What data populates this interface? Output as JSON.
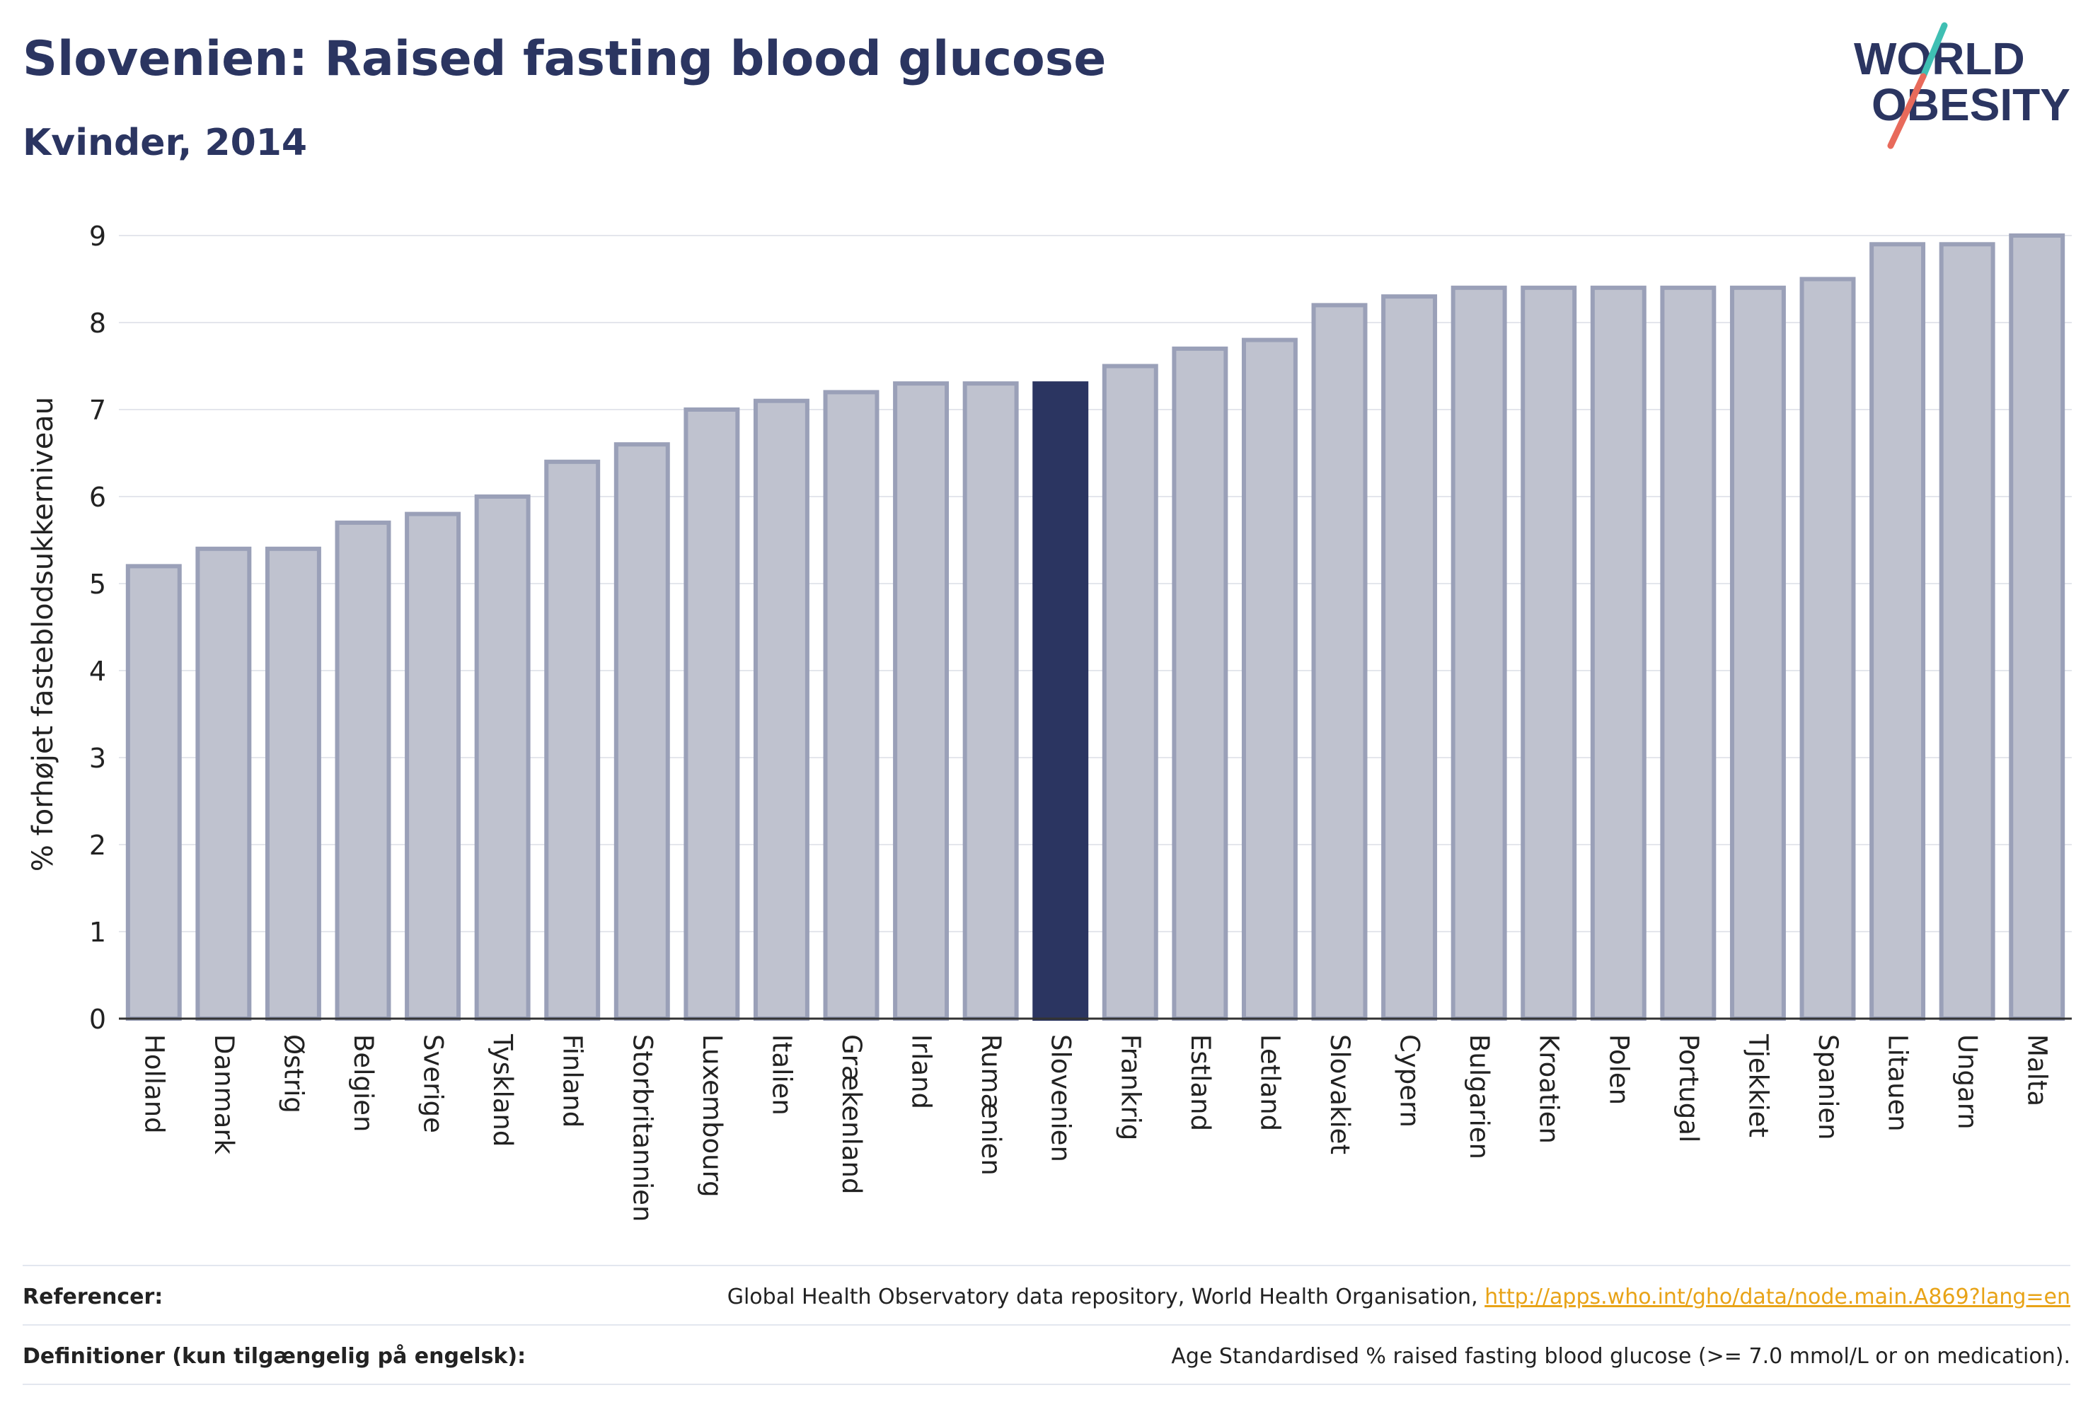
{
  "header": {
    "title": "Slovenien: Raised fasting blood glucose",
    "subtitle": "Kvinder, 2014"
  },
  "logo": {
    "line1": "WORLD",
    "line2": "OBESITY"
  },
  "colors": {
    "bar": "#bfc2cf",
    "bar_stroke": "#9aa0b8",
    "highlight": "#2b3561",
    "text": "#2b3561",
    "link": "#e8a317"
  },
  "chart_data": {
    "type": "bar",
    "ylabel": "% forhøjet fasteblodsukkerniveau",
    "ylim": [
      0,
      9
    ],
    "yticks": [
      0,
      1,
      2,
      3,
      4,
      5,
      6,
      7,
      8,
      9
    ],
    "grid": true,
    "highlight": "Slovenien",
    "categories": [
      "Holland",
      "Danmark",
      "Østrig",
      "Belgien",
      "Sverige",
      "Tyskland",
      "Finland",
      "Storbritannien",
      "Luxembourg",
      "Italien",
      "Grækenland",
      "Irland",
      "Rumænien",
      "Slovenien",
      "Frankrig",
      "Estland",
      "Letland",
      "Slovakiet",
      "Cypern",
      "Bulgarien",
      "Kroatien",
      "Polen",
      "Portugal",
      "Tjekkiet",
      "Spanien",
      "Litauen",
      "Ungarn",
      "Malta"
    ],
    "values": [
      5.2,
      5.4,
      5.4,
      5.7,
      5.8,
      6.0,
      6.4,
      6.6,
      7.0,
      7.1,
      7.2,
      7.3,
      7.3,
      7.3,
      7.5,
      7.7,
      7.8,
      8.2,
      8.3,
      8.4,
      8.4,
      8.4,
      8.4,
      8.4,
      8.5,
      8.9,
      8.9,
      9.0
    ]
  },
  "footer": {
    "references_label": "Referencer:",
    "references_text": "Global Health Observatory data repository, World Health Organisation, ",
    "references_link": "http://apps.who.int/gho/data/node.main.A869?lang=en",
    "definitions_label": "Definitioner (kun tilgængelig på engelsk):",
    "definitions_text": "Age Standardised % raised fasting blood glucose (>= 7.0 mmol/L or on medication)."
  }
}
